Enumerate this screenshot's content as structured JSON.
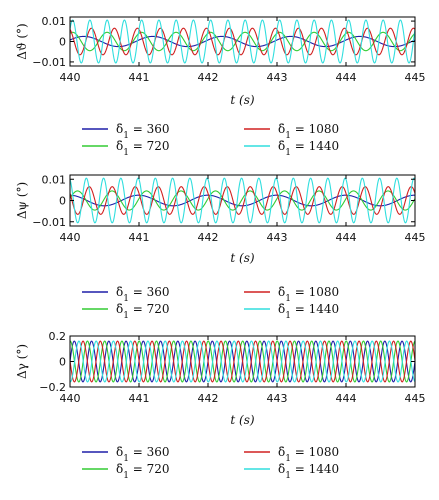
{
  "chart_data": [
    {
      "type": "line",
      "ylabel": "Δϑ (°)",
      "xlabel": "t (s)",
      "xlim": [
        440,
        445
      ],
      "ylim": [
        -0.012,
        0.012
      ],
      "xticks": [
        "440",
        "441",
        "442",
        "443",
        "444",
        "445"
      ],
      "yticks": [
        {
          "value": 0.01,
          "label": "0.01"
        },
        {
          "value": 0,
          "label": "0"
        },
        {
          "value": -0.01,
          "label": "−0.01"
        }
      ],
      "series": [
        {
          "name": "δ̇1 = 360",
          "color": "#1f1fa8",
          "amplitude": 0.0025,
          "frequency_hz": 1.0,
          "phase": 0.3
        },
        {
          "name": "δ̇1 = 720",
          "color": "#33cc33",
          "amplitude": 0.0045,
          "frequency_hz": 2.0,
          "phase": 1.1
        },
        {
          "name": "δ̇1 = 1080",
          "color": "#d02020",
          "amplitude": 0.0065,
          "frequency_hz": 3.0,
          "phase": 2.0
        },
        {
          "name": "δ̇1 = 1440",
          "color": "#30dede",
          "amplitude": 0.0105,
          "frequency_hz": 4.0,
          "phase": 0.6
        }
      ]
    },
    {
      "type": "line",
      "ylabel": "Δψ (°)",
      "xlabel": "t (s)",
      "xlim": [
        440,
        445
      ],
      "ylim": [
        -0.012,
        0.012
      ],
      "xticks": [
        "440",
        "441",
        "442",
        "443",
        "444",
        "445"
      ],
      "yticks": [
        {
          "value": 0.01,
          "label": "0.01"
        },
        {
          "value": 0,
          "label": "0"
        },
        {
          "value": -0.01,
          "label": "−0.01"
        }
      ],
      "series": [
        {
          "name": "δ̇1 = 360",
          "color": "#1f1fa8",
          "amplitude": 0.0025,
          "frequency_hz": 1.0,
          "phase": 1.6
        },
        {
          "name": "δ̇1 = 720",
          "color": "#33cc33",
          "amplitude": 0.0045,
          "frequency_hz": 2.0,
          "phase": 0.2
        },
        {
          "name": "δ̇1 = 1080",
          "color": "#d02020",
          "amplitude": 0.0065,
          "frequency_hz": 3.0,
          "phase": 2.6
        },
        {
          "name": "δ̇1 = 1440",
          "color": "#30dede",
          "amplitude": 0.0105,
          "frequency_hz": 4.0,
          "phase": 1.9
        }
      ]
    },
    {
      "type": "line",
      "ylabel": "Δγ (°)",
      "xlabel": "t (s)",
      "xlim": [
        440,
        445
      ],
      "ylim": [
        -0.2,
        0.2
      ],
      "xticks": [
        "440",
        "441",
        "442",
        "443",
        "444",
        "445"
      ],
      "yticks": [
        {
          "value": 0.2,
          "label": "0.2"
        },
        {
          "value": 0,
          "label": "0"
        },
        {
          "value": -0.2,
          "label": "−0.2"
        }
      ],
      "series": [
        {
          "name": "δ̇1 = 360",
          "color": "#1f1fa8",
          "amplitude": 0.16,
          "frequency_hz": 4.0,
          "phase": 0.0
        },
        {
          "name": "δ̇1 = 720",
          "color": "#33cc33",
          "amplitude": 0.16,
          "frequency_hz": 4.0,
          "phase": 1.5
        },
        {
          "name": "δ̇1 = 1080",
          "color": "#d02020",
          "amplitude": 0.16,
          "frequency_hz": 4.0,
          "phase": 3.1
        },
        {
          "name": "δ̇1 = 1440",
          "color": "#30dede",
          "amplitude": 0.16,
          "frequency_hz": 4.0,
          "phase": 4.6
        }
      ]
    }
  ],
  "legend": {
    "placement": "below each panel",
    "entries": [
      {
        "label": "δ̇1 = 360",
        "color": "#1f1fa8"
      },
      {
        "label": "δ̇1 = 720",
        "color": "#33cc33"
      },
      {
        "label": "δ̇1 = 1080",
        "color": "#d02020"
      },
      {
        "label": "δ̇1 = 1440",
        "color": "#30dede"
      }
    ]
  }
}
